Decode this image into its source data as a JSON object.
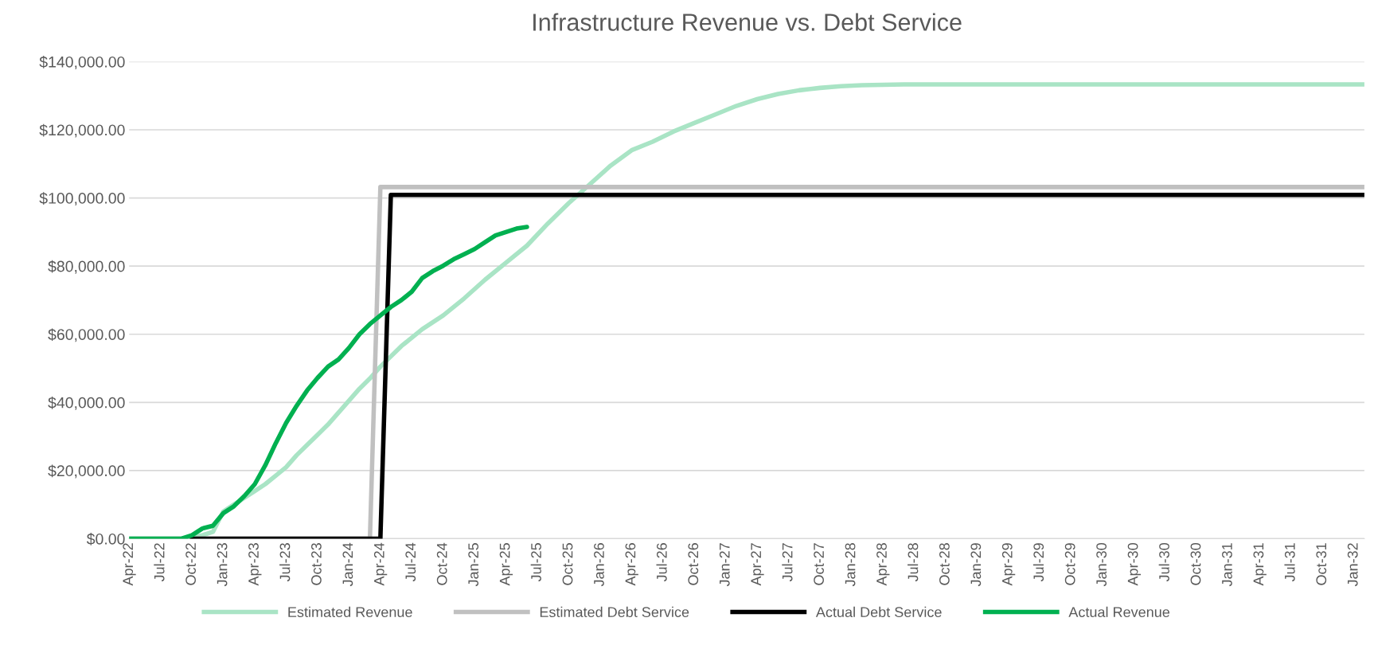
{
  "chart_data": {
    "type": "line",
    "title": "Infrastructure Revenue vs. Debt Service",
    "xlim": [
      "2022-04",
      "2032-02"
    ],
    "xticks": [
      {
        "value": "2022-04",
        "label": "Apr-22"
      },
      {
        "value": "2022-07",
        "label": "Jul-22"
      },
      {
        "value": "2022-10",
        "label": "Oct-22"
      },
      {
        "value": "2023-01",
        "label": "Jan-23"
      },
      {
        "value": "2023-04",
        "label": "Apr-23"
      },
      {
        "value": "2023-07",
        "label": "Jul-23"
      },
      {
        "value": "2023-10",
        "label": "Oct-23"
      },
      {
        "value": "2024-01",
        "label": "Jan-24"
      },
      {
        "value": "2024-04",
        "label": "Apr-24"
      },
      {
        "value": "2024-07",
        "label": "Jul-24"
      },
      {
        "value": "2024-10",
        "label": "Oct-24"
      },
      {
        "value": "2025-01",
        "label": "Jan-25"
      },
      {
        "value": "2025-04",
        "label": "Apr-25"
      },
      {
        "value": "2025-07",
        "label": "Jul-25"
      },
      {
        "value": "2025-10",
        "label": "Oct-25"
      },
      {
        "value": "2026-01",
        "label": "Jan-26"
      },
      {
        "value": "2026-04",
        "label": "Apr-26"
      },
      {
        "value": "2026-07",
        "label": "Jul-26"
      },
      {
        "value": "2026-10",
        "label": "Oct-26"
      },
      {
        "value": "2027-01",
        "label": "Jan-27"
      },
      {
        "value": "2027-04",
        "label": "Apr-27"
      },
      {
        "value": "2027-07",
        "label": "Jul-27"
      },
      {
        "value": "2027-10",
        "label": "Oct-27"
      },
      {
        "value": "2028-01",
        "label": "Jan-28"
      },
      {
        "value": "2028-04",
        "label": "Apr-28"
      },
      {
        "value": "2028-07",
        "label": "Jul-28"
      },
      {
        "value": "2028-10",
        "label": "Oct-28"
      },
      {
        "value": "2029-01",
        "label": "Jan-29"
      },
      {
        "value": "2029-04",
        "label": "Apr-29"
      },
      {
        "value": "2029-07",
        "label": "Jul-29"
      },
      {
        "value": "2029-10",
        "label": "Oct-29"
      },
      {
        "value": "2030-01",
        "label": "Jan-30"
      },
      {
        "value": "2030-04",
        "label": "Apr-30"
      },
      {
        "value": "2030-07",
        "label": "Jul-30"
      },
      {
        "value": "2030-10",
        "label": "Oct-30"
      },
      {
        "value": "2031-01",
        "label": "Jan-31"
      },
      {
        "value": "2031-04",
        "label": "Apr-31"
      },
      {
        "value": "2031-07",
        "label": "Jul-31"
      },
      {
        "value": "2031-10",
        "label": "Oct-31"
      },
      {
        "value": "2032-01",
        "label": "Jan-32"
      }
    ],
    "ylim": [
      0,
      140000
    ],
    "yticks": [
      {
        "value": 0,
        "label": "$0.00"
      },
      {
        "value": 20000,
        "label": "$20,000.00"
      },
      {
        "value": 40000,
        "label": "$40,000.00"
      },
      {
        "value": 60000,
        "label": "$60,000.00"
      },
      {
        "value": 80000,
        "label": "$80,000.00"
      },
      {
        "value": 100000,
        "label": "$100,000.00"
      },
      {
        "value": 120000,
        "label": "$120,000.00"
      },
      {
        "value": 140000,
        "label": "$140,000.00"
      }
    ],
    "grid": "y",
    "legend": "bottom",
    "marker": "none",
    "line_style": "solid",
    "series": [
      {
        "name": "Estimated Revenue",
        "color": "#a9e4c5",
        "x": [
          "2022-04",
          "2022-09",
          "2022-10",
          "2022-11",
          "2022-12",
          "2023-01",
          "2023-02",
          "2023-03",
          "2023-04",
          "2023-05",
          "2023-06",
          "2023-07",
          "2023-08",
          "2023-09",
          "2023-10",
          "2023-11",
          "2023-12",
          "2024-01",
          "2024-02",
          "2024-03",
          "2024-04",
          "2024-06",
          "2024-08",
          "2024-10",
          "2024-12",
          "2025-02",
          "2025-04",
          "2025-06",
          "2025-08",
          "2025-10",
          "2025-12",
          "2026-02",
          "2026-04",
          "2026-06",
          "2026-08",
          "2026-10",
          "2026-12",
          "2027-02",
          "2027-04",
          "2027-06",
          "2027-08",
          "2027-10",
          "2027-12",
          "2028-02",
          "2028-06",
          "2032-02"
        ],
        "values": [
          0,
          0,
          500,
          1000,
          2000,
          8000,
          10000,
          12000,
          14000,
          16000,
          18500,
          21000,
          24500,
          27500,
          30500,
          33500,
          37000,
          40500,
          44000,
          47000,
          50500,
          56500,
          61500,
          65500,
          70500,
          76000,
          81000,
          86000,
          92500,
          98500,
          104000,
          109500,
          114000,
          116500,
          119500,
          122000,
          124500,
          127000,
          129000,
          130500,
          131600,
          132300,
          132800,
          133100,
          133300,
          133300
        ]
      },
      {
        "name": "Estimated Debt Service",
        "color": "#c0c0c0",
        "x": [
          "2022-04",
          "2024-03",
          "2024-04",
          "2032-02"
        ],
        "values": [
          0,
          0,
          103200,
          103200
        ]
      },
      {
        "name": "Actual Debt Service",
        "color": "#000000",
        "x": [
          "2022-10",
          "2024-04",
          "2024-05",
          "2032-02"
        ],
        "values": [
          0,
          0,
          100900,
          100900
        ]
      },
      {
        "name": "Actual Revenue",
        "color": "#00b050",
        "x": [
          "2022-04",
          "2022-09",
          "2022-10",
          "2022-11",
          "2022-12",
          "2023-01",
          "2023-02",
          "2023-03",
          "2023-04",
          "2023-05",
          "2023-06",
          "2023-07",
          "2023-08",
          "2023-09",
          "2023-10",
          "2023-11",
          "2023-12",
          "2024-01",
          "2024-02",
          "2024-03",
          "2024-04",
          "2024-05",
          "2024-06",
          "2024-07",
          "2024-08",
          "2024-09",
          "2024-10",
          "2024-11",
          "2024-12",
          "2025-01",
          "2025-02",
          "2025-03",
          "2025-04",
          "2025-05",
          "2025-06"
        ],
        "values": [
          0,
          0,
          1000,
          3000,
          3800,
          7500,
          9500,
          12500,
          16000,
          21500,
          28000,
          34000,
          39000,
          43500,
          47200,
          50500,
          52600,
          56000,
          60000,
          63000,
          65500,
          68000,
          70000,
          72500,
          76500,
          78500,
          80100,
          82000,
          83500,
          85000,
          87000,
          89000,
          90000,
          91000,
          91500
        ]
      }
    ]
  }
}
